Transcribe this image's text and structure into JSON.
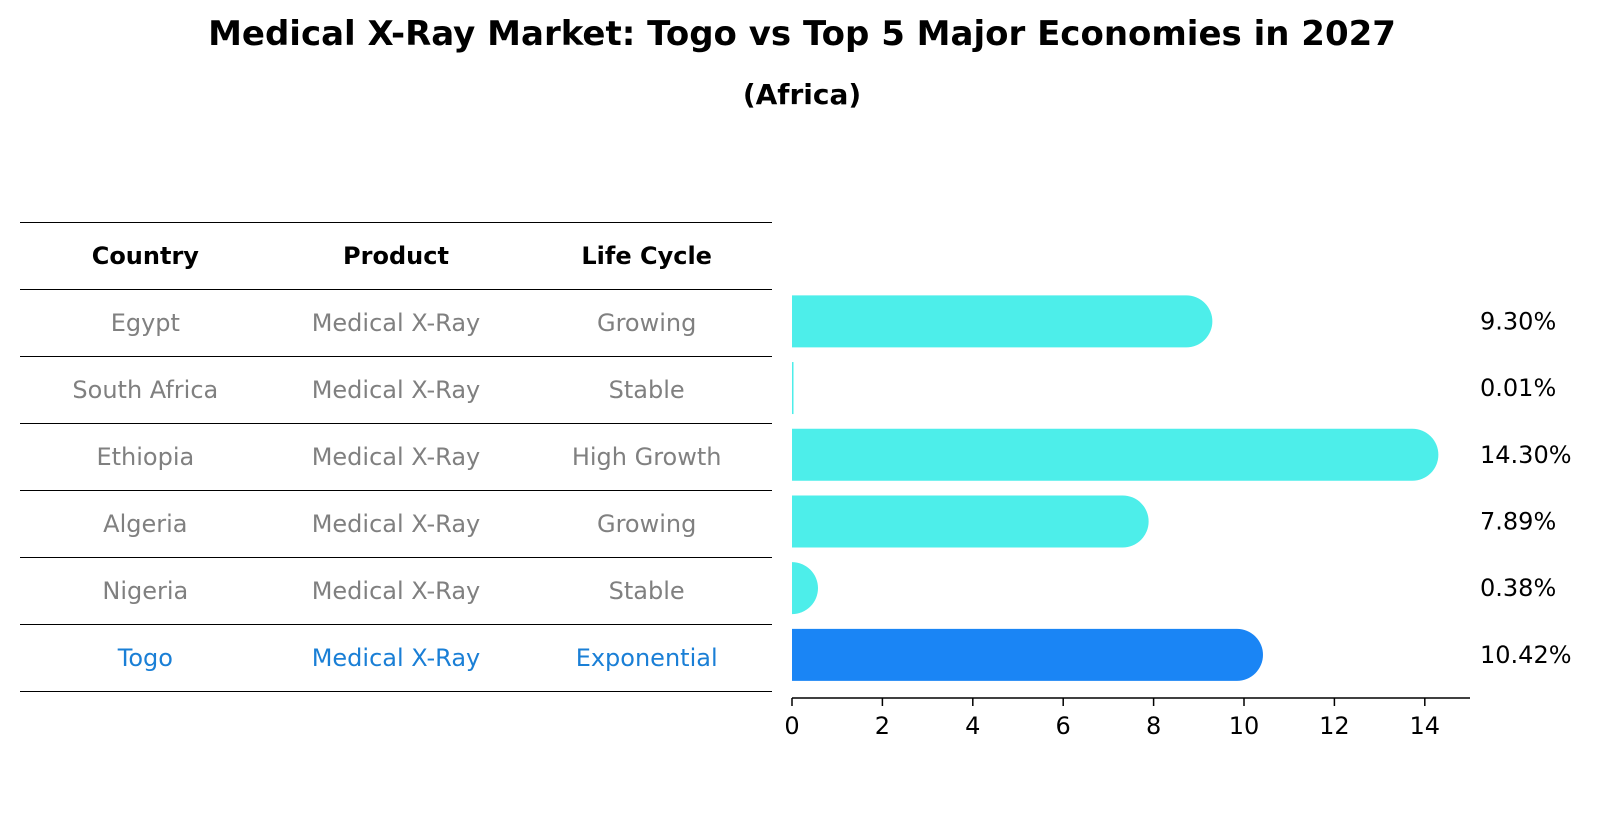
{
  "chart_data": {
    "type": "bar",
    "orientation": "horizontal",
    "title": "Medical X-Ray Market: Togo vs Top 5 Major Economies in 2027",
    "subtitle": "(Africa)",
    "categories": [
      "Egypt",
      "South Africa",
      "Ethiopia",
      "Algeria",
      "Nigeria",
      "Togo"
    ],
    "values": [
      9.3,
      0.01,
      14.3,
      7.89,
      0.38,
      10.42
    ],
    "value_labels": [
      "9.30%",
      "0.01%",
      "14.30%",
      "7.89%",
      "0.38%",
      "10.42%"
    ],
    "highlight": "Togo",
    "xlim": [
      0,
      15
    ],
    "xticks": [
      0,
      2,
      4,
      6,
      8,
      10,
      12,
      14
    ],
    "xlabel": "",
    "ylabel": "",
    "grid": false,
    "colors": {
      "bar": "#4deeea",
      "highlight": "#1a85f5",
      "label": "#000000"
    }
  },
  "table": {
    "headers": [
      "Country",
      "Product",
      "Life Cycle"
    ],
    "rows": [
      [
        "Egypt",
        "Medical X-Ray",
        "Growing"
      ],
      [
        "South Africa",
        "Medical X-Ray",
        "Stable"
      ],
      [
        "Ethiopia",
        "Medical X-Ray",
        "High Growth"
      ],
      [
        "Algeria",
        "Medical X-Ray",
        "Growing"
      ],
      [
        "Nigeria",
        "Medical X-Ray",
        "Stable"
      ],
      [
        "Togo",
        "Medical X-Ray",
        "Exponential"
      ]
    ],
    "colors": {
      "text": "#808080",
      "highlight": "#1a7fd6"
    }
  }
}
